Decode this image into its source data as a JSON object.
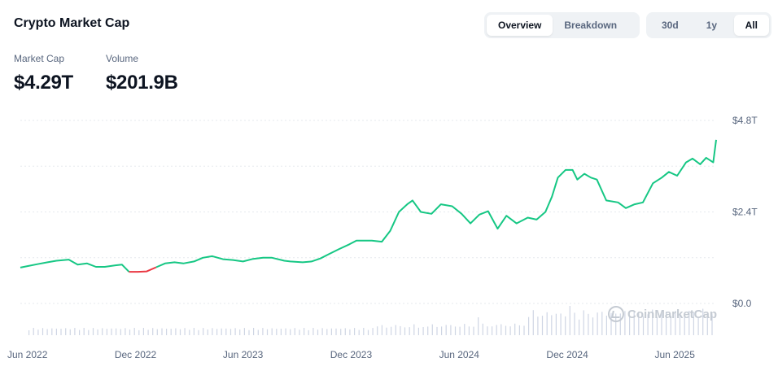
{
  "header": {
    "title": "Crypto Market Cap"
  },
  "view_toggle": {
    "overview": "Overview",
    "breakdown": "Breakdown",
    "active": "overview"
  },
  "range_toggle": {
    "d30": "30d",
    "y1": "1y",
    "all": "All",
    "active": "all"
  },
  "stats": {
    "market_cap_label": "Market Cap",
    "market_cap_value": "$4.29T",
    "volume_label": "Volume",
    "volume_value": "$201.9B"
  },
  "watermark": {
    "text": "CoinMarketCap",
    "icon": "coinmarketcap-logo-icon"
  },
  "chart_data": {
    "type": "line",
    "title": "",
    "xlabel": "",
    "ylabel": "",
    "x_ticks": [
      "Jun 2022",
      "Dec 2022",
      "Jun 2023",
      "Dec 2023",
      "Jun 2024",
      "Dec 2024",
      "Jun 2025"
    ],
    "y_ticks": [
      "$4.8T",
      "$2.4T",
      "$0.0"
    ],
    "y_tick_values": [
      4.8,
      2.4,
      0.0
    ],
    "ylim": [
      0,
      4.8
    ],
    "xlim": [
      "2022-05-20",
      "2025-08-10"
    ],
    "grid": true,
    "colors": {
      "up": "#16c784",
      "down": "#ea3943",
      "volume": "#cfd6e4",
      "grid": "#e6e9ee",
      "axis_text": "#58667e"
    },
    "series": [
      {
        "values_unit": "T USD",
        "x": [
          "2022-05-20",
          "2022-06-01",
          "2022-06-18",
          "2022-07-05",
          "2022-07-20",
          "2022-08-10",
          "2022-08-25",
          "2022-09-10",
          "2022-09-25",
          "2022-10-10",
          "2022-10-28",
          "2022-11-08",
          "2022-11-20",
          "2022-12-05",
          "2022-12-20",
          "2023-01-05",
          "2023-01-20",
          "2023-02-05",
          "2023-02-20",
          "2023-03-10",
          "2023-03-25",
          "2023-04-10",
          "2023-04-28",
          "2023-05-15",
          "2023-06-01",
          "2023-06-18",
          "2023-07-05",
          "2023-07-20",
          "2023-08-10",
          "2023-08-20",
          "2023-09-10",
          "2023-09-25",
          "2023-10-10",
          "2023-10-25",
          "2023-11-10",
          "2023-11-28",
          "2023-12-10",
          "2024-01-05",
          "2024-01-22",
          "2024-02-05",
          "2024-02-20",
          "2024-03-05",
          "2024-03-14",
          "2024-03-28",
          "2024-04-15",
          "2024-05-01",
          "2024-05-20",
          "2024-06-05",
          "2024-06-20",
          "2024-07-05",
          "2024-07-20",
          "2024-08-05",
          "2024-08-20",
          "2024-09-06",
          "2024-09-25",
          "2024-10-10",
          "2024-10-25",
          "2024-11-05",
          "2024-11-15",
          "2024-11-28",
          "2024-12-10",
          "2024-12-18",
          "2024-12-30",
          "2025-01-10",
          "2025-01-20",
          "2025-02-05",
          "2025-02-25",
          "2025-03-10",
          "2025-03-25",
          "2025-04-08",
          "2025-04-25",
          "2025-05-10",
          "2025-05-22",
          "2025-06-05",
          "2025-06-20",
          "2025-07-01",
          "2025-07-14",
          "2025-07-24",
          "2025-08-05",
          "2025-08-10"
        ],
        "values": [
          0.94,
          0.98,
          1.03,
          1.08,
          1.12,
          1.15,
          1.02,
          1.05,
          0.96,
          0.96,
          1.0,
          1.02,
          0.83,
          0.83,
          0.84,
          0.95,
          1.05,
          1.08,
          1.05,
          1.1,
          1.2,
          1.24,
          1.16,
          1.14,
          1.1,
          1.17,
          1.2,
          1.2,
          1.12,
          1.1,
          1.08,
          1.1,
          1.18,
          1.3,
          1.42,
          1.55,
          1.65,
          1.65,
          1.62,
          1.9,
          2.4,
          2.6,
          2.7,
          2.4,
          2.35,
          2.6,
          2.55,
          2.35,
          2.1,
          2.33,
          2.42,
          1.96,
          2.3,
          2.1,
          2.25,
          2.2,
          2.4,
          2.8,
          3.3,
          3.5,
          3.5,
          3.25,
          3.4,
          3.3,
          3.25,
          2.7,
          2.65,
          2.5,
          2.6,
          2.65,
          3.15,
          3.3,
          3.45,
          3.35,
          3.7,
          3.8,
          3.65,
          3.82,
          3.7,
          4.29
        ]
      }
    ],
    "volume_bars": "present, unlabeled"
  }
}
